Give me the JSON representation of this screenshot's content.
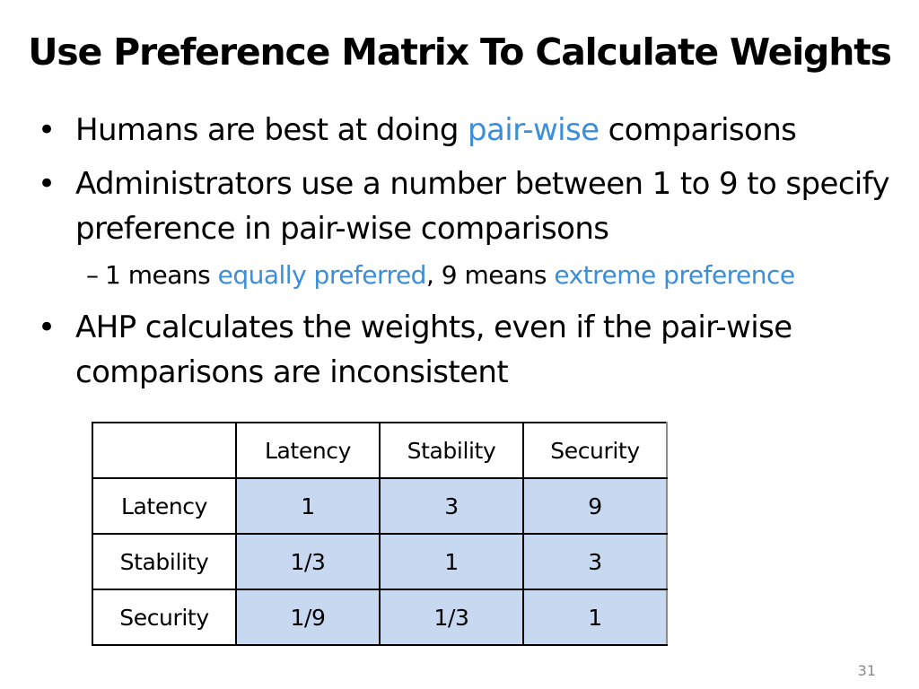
{
  "slide": {
    "title": "Use Preference Matrix To Calculate Weights",
    "page_number": "31"
  },
  "bullets": {
    "b1": {
      "pre": "Humans are best at doing ",
      "highlight": "pair-wise",
      "post": " comparisons"
    },
    "b2": {
      "text": "Administrators use a number between 1 to 9 to specify preference in pair-wise comparisons"
    },
    "b2_sub": {
      "dash": "–",
      "part1": "1 means ",
      "highlight1": "equally preferred",
      "part2": ", 9 means ",
      "highlight2": "extreme preference"
    },
    "b3": {
      "text": "AHP calculates the weights, even if the pair-wise comparisons are inconsistent"
    },
    "bullet_symbol": "•"
  },
  "table": {
    "headers": [
      "",
      "Latency",
      "Stability",
      "Security"
    ],
    "rows": [
      {
        "label": "Latency",
        "values": [
          "1",
          "3",
          "9"
        ]
      },
      {
        "label": "Stability",
        "values": [
          "1/3",
          "1",
          "3"
        ]
      },
      {
        "label": "Security",
        "values": [
          "1/9",
          "1/3",
          "1"
        ]
      }
    ]
  },
  "colors": {
    "highlight_text": "#3B8EDB",
    "cell_fill": "#C6D9F1"
  }
}
